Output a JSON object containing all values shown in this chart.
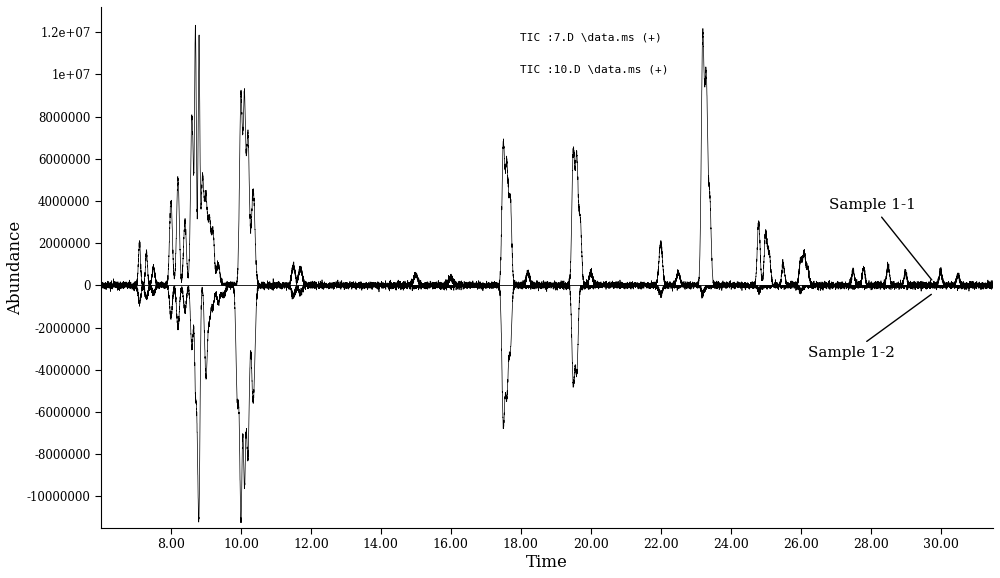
{
  "title": "",
  "xlabel": "Time",
  "ylabel": "Abundance",
  "legend_line1": "TIC :7.D \\data.ms (+)",
  "legend_line2": "TIC :10.D \\data.ms (+)",
  "sample1_label": "Sample 1-1",
  "sample2_label": "Sample 1-2",
  "xlim": [
    6.0,
    31.5
  ],
  "ylim": [
    -11500000.0,
    13200000.0
  ],
  "yticks": [
    -10000000,
    -8000000,
    -6000000,
    -4000000,
    -2000000,
    0,
    2000000,
    4000000,
    6000000,
    8000000,
    10000000,
    12000000
  ],
  "ytick_labels": [
    "-10000000",
    "-8000000",
    "-6000000",
    "-4000000",
    "-2000000",
    "0",
    "2000000",
    "4000000",
    "6000000",
    "8000000",
    "1e+07",
    "1.2e+07"
  ],
  "xticks": [
    8.0,
    10.0,
    12.0,
    14.0,
    16.0,
    18.0,
    20.0,
    22.0,
    24.0,
    26.0,
    28.0,
    30.0
  ],
  "background_color": "#ffffff",
  "line_color": "#000000",
  "seed": 42
}
